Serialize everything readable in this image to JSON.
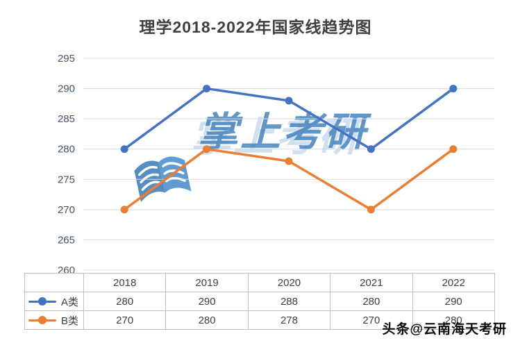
{
  "title": "理学2018-2022年国家线趋势图",
  "watermark": {
    "text": "掌上考研",
    "icon": "open-book-icon"
  },
  "credit": "头条@云南海天考研",
  "chart_data": {
    "type": "line",
    "title": "理学2018-2022年国家线趋势图",
    "categories": [
      "2018",
      "2019",
      "2020",
      "2021",
      "2022"
    ],
    "series": [
      {
        "name": "A类",
        "color": "#4472C4",
        "values": [
          280,
          290,
          288,
          280,
          290
        ]
      },
      {
        "name": "B类",
        "color": "#ED7D31",
        "values": [
          270,
          280,
          278,
          270,
          280
        ]
      }
    ],
    "ylim": [
      260,
      295
    ],
    "ytick_step": 5,
    "grid": true,
    "grid_color": "#D9D9D9",
    "axis_label_color": "#44546A",
    "table_text_color": "#404040",
    "table_border_color": "#BFBFBF",
    "legend_position": "table-left",
    "data_table_shown": true
  }
}
